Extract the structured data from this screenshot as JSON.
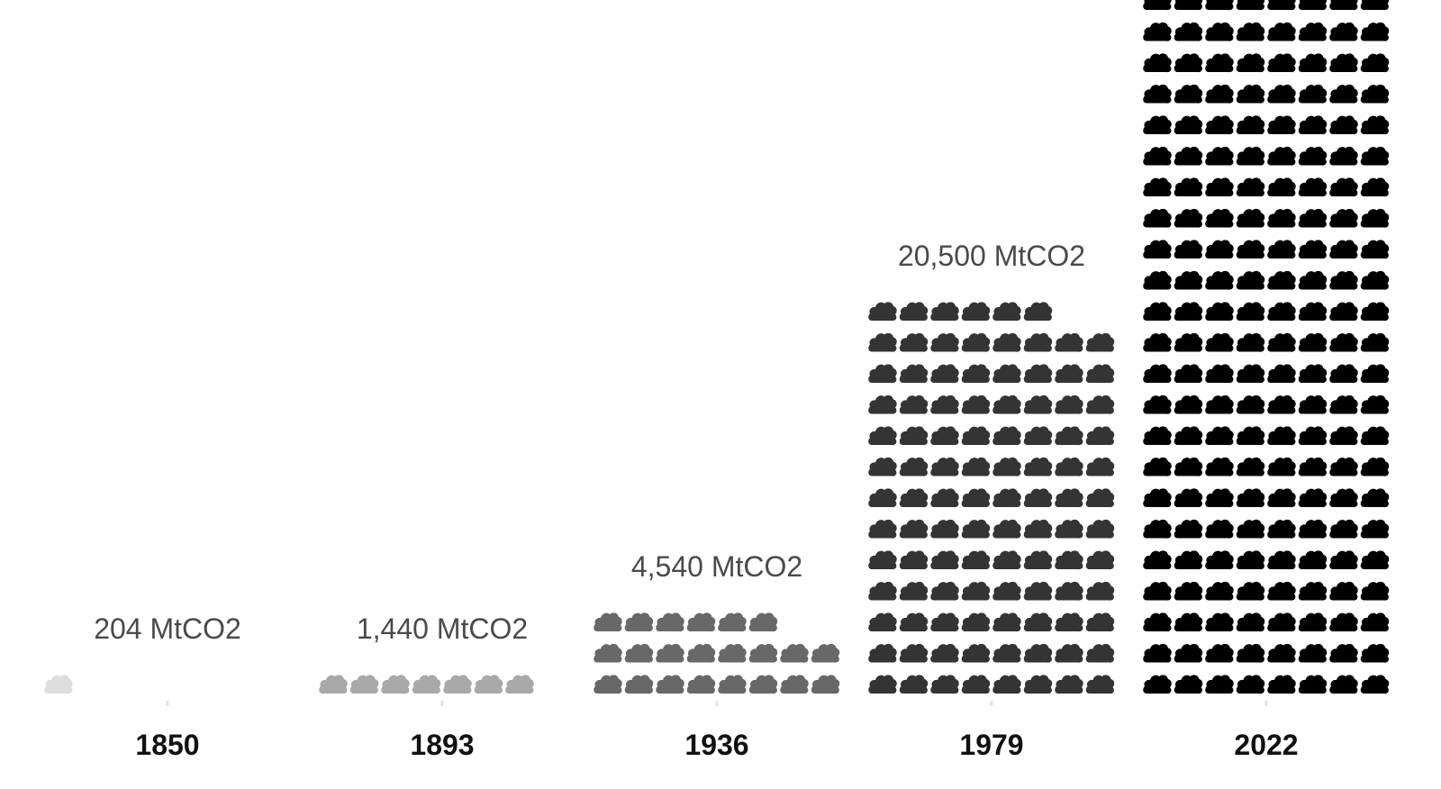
{
  "chart_data": {
    "type": "bar",
    "subtype": "pictogram",
    "icon": "smoke-cloud-icon",
    "categories": [
      "1850",
      "1893",
      "1936",
      "1979",
      "2022"
    ],
    "values": [
      204,
      1440,
      4540,
      20500,
      37200
    ],
    "value_labels": [
      "204 MtCO2",
      "1,440 MtCO2",
      "4,540 MtCO2",
      "20,500 MtCO2",
      ""
    ],
    "unit": "MtCO2",
    "mtco2_per_icon": 200,
    "colors": [
      "#dedede",
      "#a9a9a9",
      "#686868",
      "#343434",
      "#000000"
    ],
    "title": "",
    "xlabel": "",
    "ylabel": ""
  }
}
